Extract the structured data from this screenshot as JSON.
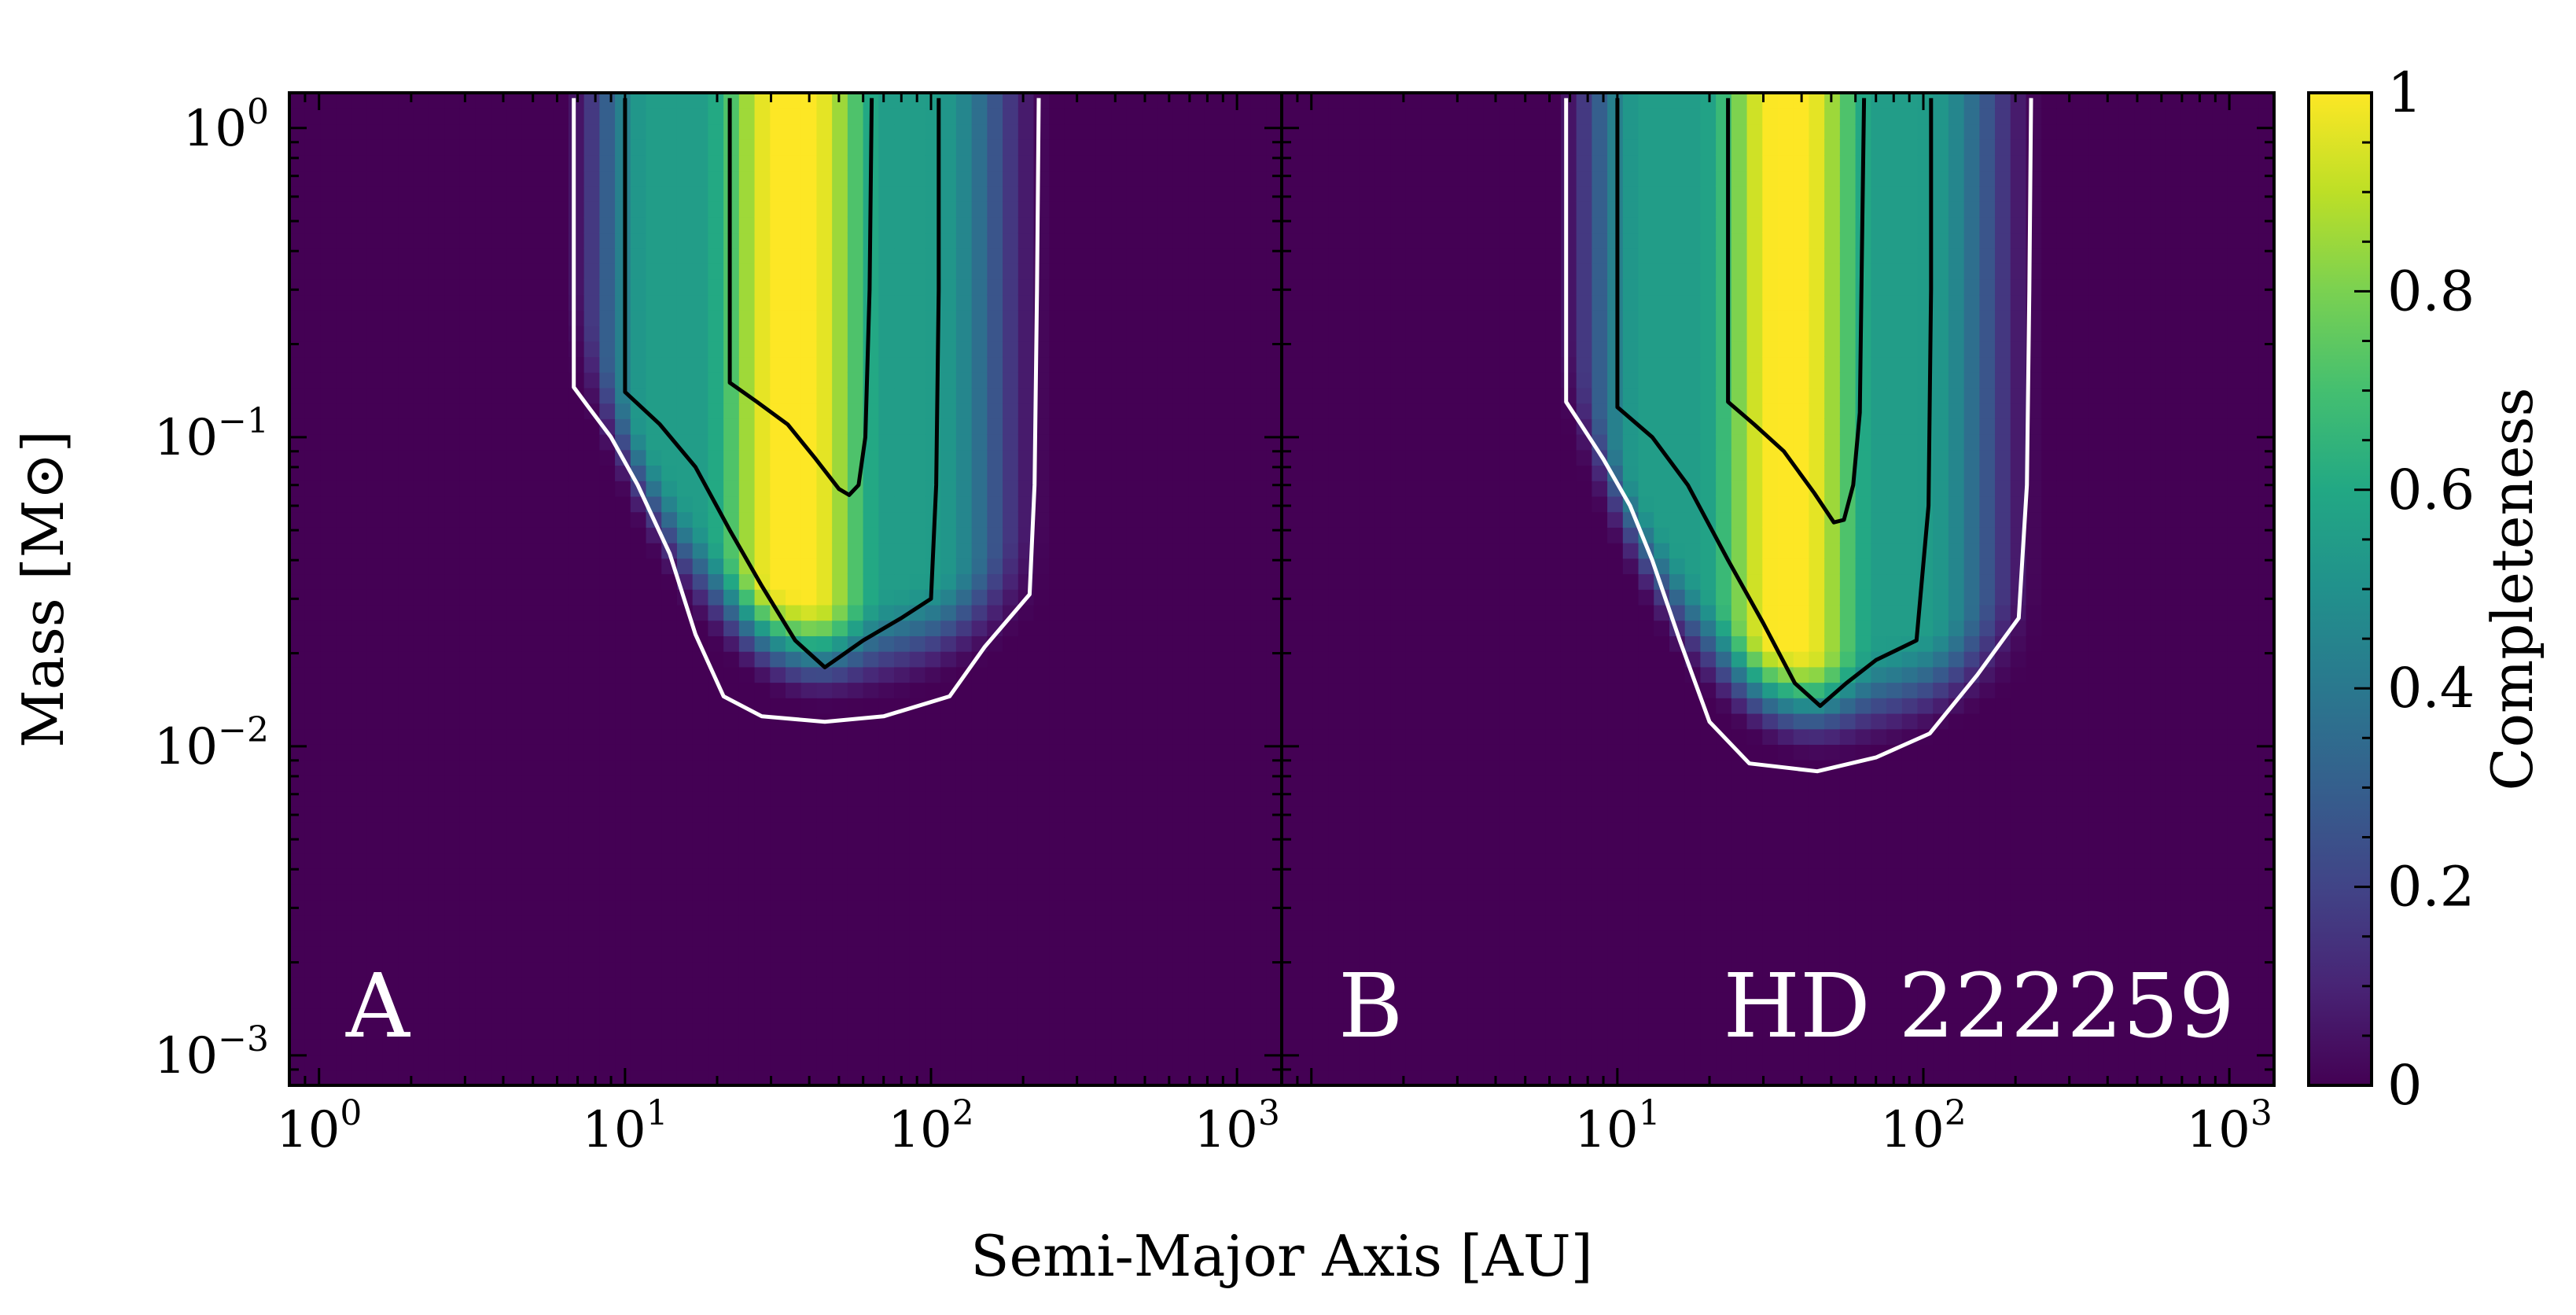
{
  "figure": {
    "xlabel": "Semi-Major Axis [AU]",
    "ylabel": "Mass [M⊙]",
    "colorbar_label": "Completeness",
    "colorbar_ticks": [
      "0",
      "0.2",
      "0.4",
      "0.6",
      "0.8",
      "1"
    ],
    "colormap": "viridis",
    "contour_colors": {
      "outer": "#ffffff",
      "inner": "#000000"
    }
  },
  "chart_data": [
    {
      "type": "heatmap",
      "panel_label": "A",
      "annotation": "",
      "xscale": "log",
      "yscale": "log",
      "xlim": [
        0.8,
        1400
      ],
      "ylim": [
        0.0008,
        1.3
      ],
      "x_ticks": [
        1,
        10,
        100,
        1000
      ],
      "x_tick_labels": [
        "10^0",
        "10^1",
        "10^2",
        "10^3"
      ],
      "y_ticks": [
        0.001,
        0.01,
        0.1,
        1
      ],
      "y_tick_labels": [
        "10^-3",
        "10^-2",
        "10^-1",
        "10^0"
      ],
      "region": {
        "a_in_high": 6.8,
        "a_out_high": 225,
        "m_floor": 0.0125,
        "a_floor": 45,
        "m_knee": 0.145,
        "a_peak_low": 22,
        "a_peak_high": 64
      },
      "contours": [
        {
          "level": 0.1,
          "color": "white",
          "points": [
            [
              6.8,
              1.25
            ],
            [
              6.8,
              0.145
            ],
            [
              7.6,
              0.125
            ],
            [
              9,
              0.1
            ],
            [
              11,
              0.07
            ],
            [
              14,
              0.042
            ],
            [
              17,
              0.023
            ],
            [
              21,
              0.0145
            ],
            [
              28,
              0.0125
            ],
            [
              45,
              0.012
            ],
            [
              70,
              0.0125
            ],
            [
              115,
              0.0145
            ],
            [
              150,
              0.021
            ],
            [
              210,
              0.031
            ],
            [
              218,
              0.07
            ],
            [
              222,
              0.3
            ],
            [
              225,
              1.25
            ]
          ]
        },
        {
          "level": 0.5,
          "color": "black",
          "points": [
            [
              10,
              1.25
            ],
            [
              10,
              0.14
            ],
            [
              13,
              0.11
            ],
            [
              17,
              0.08
            ],
            [
              22,
              0.05
            ],
            [
              28,
              0.033
            ],
            [
              36,
              0.022
            ],
            [
              45,
              0.018
            ],
            [
              60,
              0.022
            ],
            [
              80,
              0.026
            ],
            [
              100,
              0.03
            ],
            [
              104,
              0.07
            ],
            [
              106,
              0.3
            ],
            [
              106,
              1.25
            ]
          ]
        },
        {
          "level": 0.9,
          "color": "black",
          "points": [
            [
              22,
              1.25
            ],
            [
              22,
              0.15
            ],
            [
              27,
              0.13
            ],
            [
              34,
              0.11
            ],
            [
              42,
              0.085
            ],
            [
              50,
              0.068
            ],
            [
              54,
              0.065
            ],
            [
              58,
              0.07
            ],
            [
              61,
              0.1
            ],
            [
              63,
              0.3
            ],
            [
              64,
              1.25
            ]
          ]
        }
      ]
    },
    {
      "type": "heatmap",
      "panel_label": "B",
      "annotation": "HD 222259",
      "xscale": "log",
      "yscale": "log",
      "xlim": [
        0.8,
        1400
      ],
      "ylim": [
        0.0008,
        1.3
      ],
      "x_ticks": [
        1,
        10,
        100,
        1000
      ],
      "x_tick_labels": [
        "10^0",
        "10^1",
        "10^2",
        "10^3"
      ],
      "y_ticks": [
        0.001,
        0.01,
        0.1,
        1
      ],
      "y_tick_labels": [
        "10^-3",
        "10^-2",
        "10^-1",
        "10^0"
      ],
      "region": {
        "a_in_high": 6.8,
        "a_out_high": 225,
        "m_floor": 0.0085,
        "a_floor": 45,
        "m_knee": 0.13,
        "a_peak_low": 23,
        "a_peak_high": 64
      },
      "contours": [
        {
          "level": 0.1,
          "color": "white",
          "points": [
            [
              6.8,
              1.25
            ],
            [
              6.8,
              0.13
            ],
            [
              7.6,
              0.11
            ],
            [
              9,
              0.085
            ],
            [
              11,
              0.06
            ],
            [
              13,
              0.04
            ],
            [
              16,
              0.022
            ],
            [
              20,
              0.012
            ],
            [
              27,
              0.0088
            ],
            [
              45,
              0.0083
            ],
            [
              70,
              0.0092
            ],
            [
              105,
              0.011
            ],
            [
              150,
              0.017
            ],
            [
              205,
              0.026
            ],
            [
              218,
              0.07
            ],
            [
              222,
              0.3
            ],
            [
              225,
              1.25
            ]
          ]
        },
        {
          "level": 0.5,
          "color": "black",
          "points": [
            [
              10,
              1.25
            ],
            [
              10,
              0.125
            ],
            [
              13,
              0.1
            ],
            [
              17,
              0.07
            ],
            [
              23,
              0.04
            ],
            [
              30,
              0.025
            ],
            [
              38,
              0.016
            ],
            [
              46,
              0.0135
            ],
            [
              56,
              0.016
            ],
            [
              70,
              0.019
            ],
            [
              95,
              0.022
            ],
            [
              104,
              0.06
            ],
            [
              106,
              0.3
            ],
            [
              106,
              1.25
            ]
          ]
        },
        {
          "level": 0.9,
          "color": "black",
          "points": [
            [
              23,
              1.25
            ],
            [
              23,
              0.13
            ],
            [
              28,
              0.11
            ],
            [
              35,
              0.09
            ],
            [
              44,
              0.066
            ],
            [
              51,
              0.053
            ],
            [
              55,
              0.054
            ],
            [
              59,
              0.07
            ],
            [
              62,
              0.12
            ],
            [
              63,
              0.4
            ],
            [
              64,
              1.25
            ]
          ]
        }
      ]
    }
  ]
}
